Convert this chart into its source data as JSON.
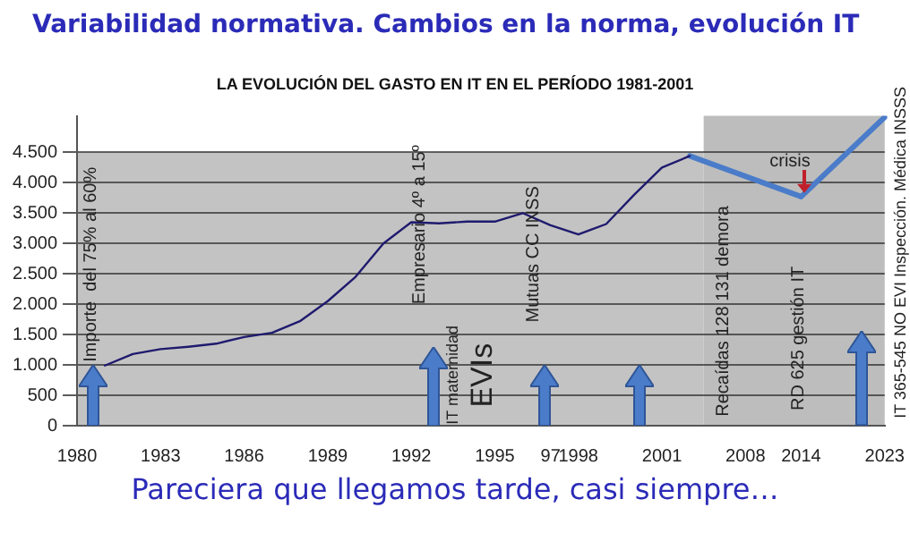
{
  "chart_data": {
    "type": "line",
    "title": "Variabilidad normativa. Cambios en la norma, evolución IT",
    "subtitle": "LA EVOLUCIÓN DEL GASTO EN IT EN EL PERÍODO 1981-2001",
    "categories": [
      "1980",
      null,
      null,
      "1983",
      null,
      null,
      "1986",
      null,
      null,
      "1989",
      null,
      null,
      "1992",
      null,
      null,
      "1995",
      null,
      "97",
      "1998",
      null,
      null,
      "2001",
      null,
      null,
      "2008",
      null,
      "2014",
      null,
      null,
      "2023"
    ],
    "series": [
      {
        "color": "#1f1a6e",
        "values": [
          null,
          990,
          1180,
          1260,
          1300,
          1350,
          1460,
          1530,
          1720,
          2050,
          2450,
          3000,
          3350,
          3330,
          3360,
          3360,
          3500,
          3300,
          3150,
          3320,
          3800,
          4250,
          4440,
          null,
          null,
          null,
          null,
          null,
          null,
          null
        ]
      },
      {
        "color": "#4a7cc9",
        "values": [
          null,
          null,
          null,
          null,
          null,
          null,
          null,
          null,
          null,
          null,
          null,
          null,
          null,
          null,
          null,
          null,
          null,
          null,
          null,
          null,
          null,
          null,
          4440,
          null,
          null,
          null,
          3770,
          null,
          null,
          5080
        ]
      }
    ],
    "ylim": [
      0,
      5100
    ],
    "yticks": [
      {
        "value": 0,
        "label": "0"
      },
      {
        "value": 500,
        "label": "500"
      },
      {
        "value": 1000,
        "label": "1.000"
      },
      {
        "value": 1500,
        "label": "1.500"
      },
      {
        "value": 2000,
        "label": "2.000"
      },
      {
        "value": 2500,
        "label": "2.500"
      },
      {
        "value": 3000,
        "label": "3.000"
      },
      {
        "value": 3500,
        "label": "3.500"
      },
      {
        "value": 4000,
        "label": "4.000"
      },
      {
        "value": 4500,
        "label": "4.500"
      }
    ],
    "grid": "y",
    "legend": false,
    "marker": "none",
    "line_style": "solid",
    "annotations": [
      "Importe  del 75% al 60%",
      "Empresario 4º a 15º",
      "IT maternidad",
      "EVIs",
      "Mutuas CC INSS",
      "crisis",
      "Recaídas 128 131 demora",
      "RD 625 gestión IT",
      "IT 365-545 NO EVI Inspección. Médica INSSS",
      "Pareciera que llegamos tarde, casi siempre…"
    ]
  }
}
